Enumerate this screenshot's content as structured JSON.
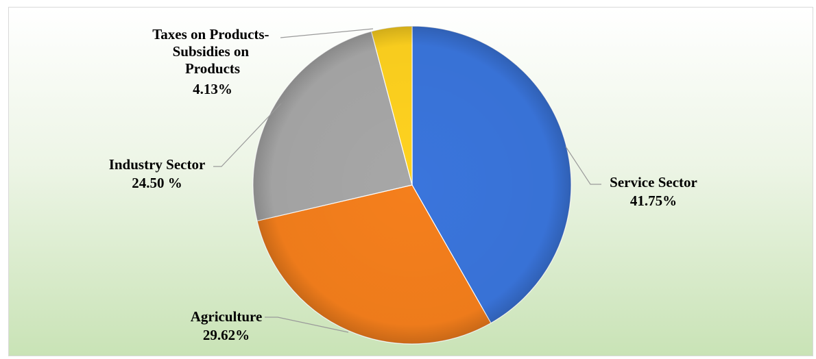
{
  "chart_data": {
    "type": "pie",
    "title": "",
    "slices": [
      {
        "name": "Service Sector",
        "display": "41.75%",
        "value": 41.75,
        "color": "#3a75dc"
      },
      {
        "name": "Agriculture",
        "display": "29.62%",
        "value": 29.62,
        "color": "#f57f1c"
      },
      {
        "name": "Industry Sector",
        "display": "24.50 %",
        "value": 24.5,
        "color": "#a7a7a7"
      },
      {
        "name": "Taxes on Products-Subsidies on Products",
        "display": "4.13%",
        "value": 4.13,
        "color": "#ffd21f"
      }
    ],
    "legend": "none",
    "start": "12 o'clock",
    "direction": "clockwise"
  }
}
